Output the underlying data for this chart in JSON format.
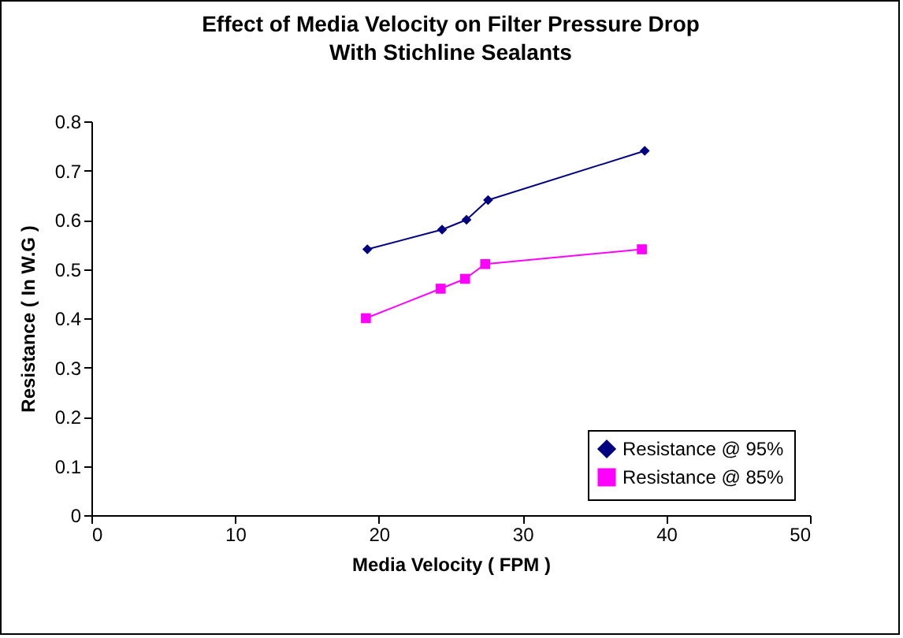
{
  "chart_data": {
    "type": "line",
    "title": "Effect of Media Velocity on Filter Pressure Drop",
    "subtitle": "With Stichline Sealants",
    "xlabel": "Media Velocity ( FPM )",
    "ylabel": "Resistance ( In W.G )",
    "xlim": [
      0,
      50
    ],
    "xticks": [
      0,
      10,
      20,
      30,
      40,
      50
    ],
    "ylim": [
      0,
      0.8
    ],
    "yticks": [
      0,
      0.1,
      0.2,
      0.3,
      0.4,
      0.5,
      0.6,
      0.7,
      0.8
    ],
    "grid": false,
    "legend": "bottom right",
    "series": [
      {
        "name": "Resistance @ 95%",
        "color": "#000080",
        "marker": "diamond",
        "x": [
          19.2,
          24.4,
          26.1,
          27.6,
          38.5
        ],
        "values": [
          0.54,
          0.58,
          0.6,
          0.64,
          0.74
        ]
      },
      {
        "name": "Resistance @ 85%",
        "color": "#ff00ff",
        "marker": "square",
        "x": [
          19.1,
          24.3,
          26.0,
          27.4,
          38.3
        ],
        "values": [
          0.4,
          0.46,
          0.48,
          0.51,
          0.54
        ]
      }
    ]
  }
}
